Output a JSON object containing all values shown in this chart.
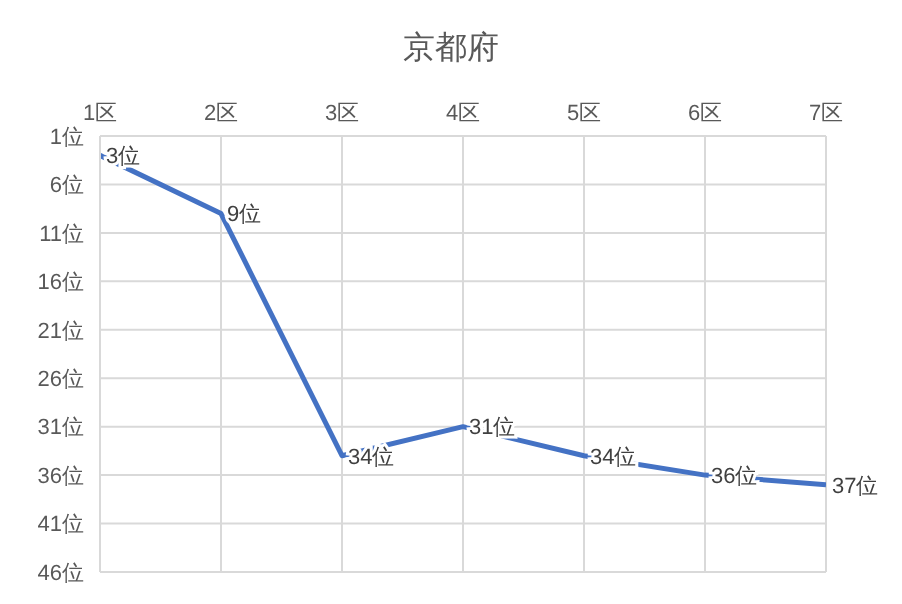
{
  "chart_data": {
    "type": "line",
    "title": "京都府",
    "categories": [
      "1区",
      "2区",
      "3区",
      "4区",
      "5区",
      "6区",
      "7区"
    ],
    "series": [
      {
        "color": "#4472c4",
        "values": [
          3,
          9,
          34,
          31,
          34,
          36,
          37
        ],
        "value_labels": [
          "3位",
          "9位",
          "34位",
          "31位",
          "34位",
          "36位",
          "37位"
        ]
      }
    ],
    "ylim": [
      46,
      1
    ],
    "yticks": [
      {
        "value": 1,
        "label": "1位"
      },
      {
        "value": 6,
        "label": "6位"
      },
      {
        "value": 11,
        "label": "11位"
      },
      {
        "value": 16,
        "label": "16位"
      },
      {
        "value": 21,
        "label": "21位"
      },
      {
        "value": 26,
        "label": "26位"
      },
      {
        "value": 31,
        "label": "31位"
      },
      {
        "value": 36,
        "label": "36位"
      },
      {
        "value": 41,
        "label": "41位"
      },
      {
        "value": 46,
        "label": "46位"
      }
    ],
    "grid": true,
    "legend": false,
    "marker": "none",
    "line_style": "solid"
  }
}
